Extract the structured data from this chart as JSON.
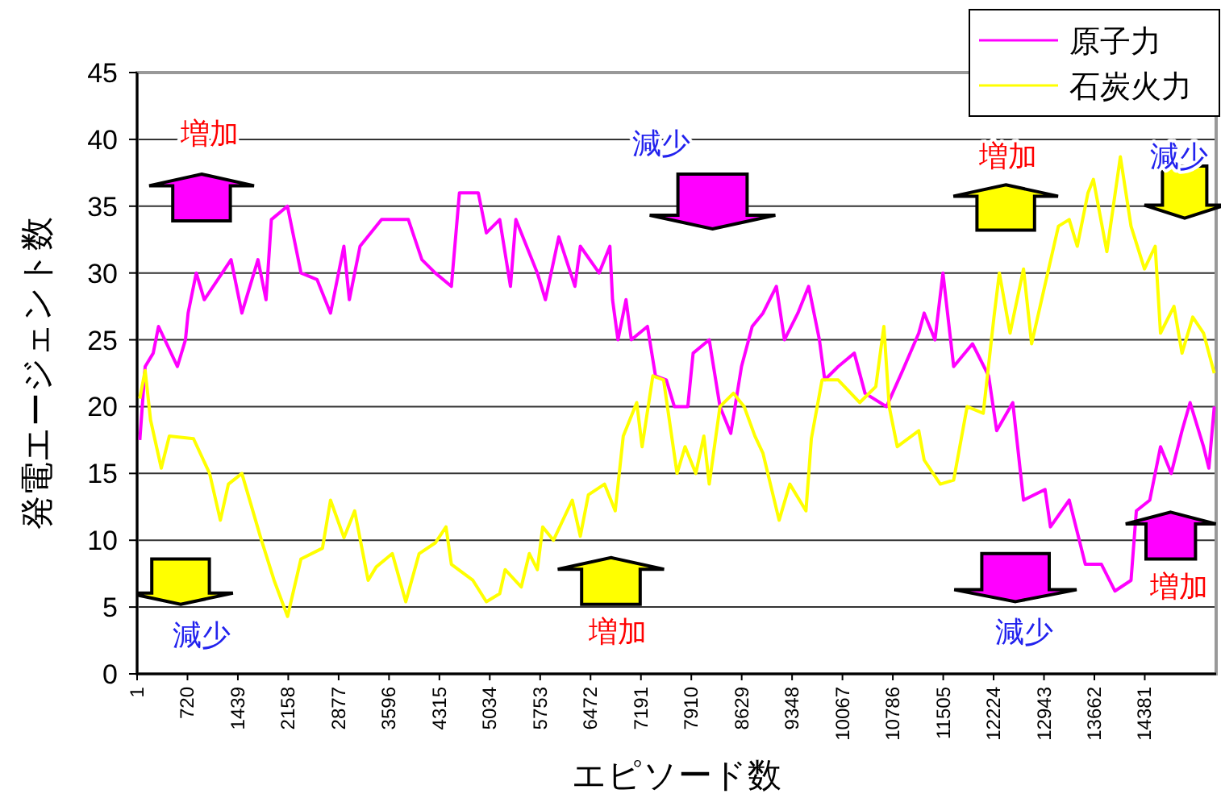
{
  "chart_data": {
    "type": "line",
    "xlabel": "エピソード数",
    "ylabel": "発電エージェント数",
    "xlim": [
      1,
      15400
    ],
    "xticks": [
      1,
      720,
      1439,
      2158,
      2877,
      3596,
      4315,
      5034,
      5753,
      6472,
      7191,
      7910,
      8629,
      9348,
      10067,
      10786,
      11505,
      12224,
      12943,
      13662,
      14381
    ],
    "ylim": [
      0,
      45
    ],
    "yticks": [
      0,
      5,
      10,
      15,
      20,
      25,
      30,
      35,
      40,
      45
    ],
    "grid": "y",
    "legend": "top right",
    "series": [
      {
        "name": "原子力",
        "color": "#ff00ff",
        "x": [
          40,
          116,
          231,
          307,
          576,
          691,
          729,
          845,
          960,
          1342,
          1496,
          1726,
          1841,
          1917,
          2147,
          2340,
          2570,
          2761,
          2952,
          3030,
          3182,
          3490,
          3872,
          4065,
          4256,
          4486,
          4601,
          4870,
          4985,
          5176,
          5329,
          5406,
          5713,
          5828,
          6019,
          6249,
          6326,
          6594,
          6748,
          6786,
          6863,
          6978,
          7054,
          7284,
          7399,
          7553,
          7668,
          7860,
          7936,
          8166,
          8319,
          8473,
          8626,
          8779,
          8933,
          9124,
          9239,
          9431,
          9584,
          9738,
          9814,
          10006,
          10236,
          10389,
          10696,
          10926,
          11156,
          11233,
          11387,
          11501,
          11654,
          11923,
          12153,
          12268,
          12498,
          12651,
          12958,
          13035,
          13303,
          13533,
          13763,
          13955,
          14185,
          14261,
          14453,
          14606,
          14759,
          14913,
          15028,
          15220,
          15296,
          15373
        ],
        "values": [
          17.5,
          23,
          24,
          26,
          23,
          25,
          27,
          30,
          28,
          31,
          27,
          31,
          28,
          34,
          35,
          30,
          29.5,
          27,
          32,
          28,
          32,
          34,
          34,
          31,
          30,
          29,
          36,
          36,
          33,
          34,
          29,
          34,
          30,
          28,
          32.7,
          29,
          32,
          30,
          32,
          28,
          25,
          28,
          25,
          26,
          22.3,
          22,
          20,
          20,
          24,
          25,
          20,
          18,
          23,
          26,
          27,
          29,
          25,
          27,
          29,
          25,
          22,
          23,
          24,
          21,
          20,
          22.7,
          25.5,
          27,
          25,
          30,
          23,
          24.7,
          22.3,
          18.2,
          20.3,
          13,
          13.8,
          11,
          13,
          8.2,
          8.2,
          6.2,
          7,
          12.2,
          13,
          17,
          15,
          18.2,
          20.3,
          17,
          15.4,
          20
        ]
      },
      {
        "name": "石炭火力",
        "color": "#ffff00",
        "x": [
          39,
          116,
          193,
          346,
          461,
          806,
          1036,
          1189,
          1304,
          1496,
          1764,
          1956,
          2148,
          2339,
          2646,
          2761,
          2953,
          3106,
          3298,
          3413,
          3643,
          3835,
          4026,
          4256,
          4409,
          4486,
          4793,
          4985,
          5176,
          5253,
          5483,
          5598,
          5713,
          5789,
          5943,
          6211,
          6326,
          6441,
          6671,
          6824,
          6939,
          7131,
          7208,
          7361,
          7514,
          7706,
          7821,
          7974,
          8089,
          8166,
          8319,
          8511,
          8664,
          8817,
          8933,
          9163,
          9316,
          9546,
          9623,
          9776,
          10006,
          10313,
          10543,
          10658,
          10734,
          10849,
          11156,
          11233,
          11463,
          11654,
          11846,
          12076,
          12229,
          12306,
          12459,
          12651,
          12766,
          12996,
          13149,
          13303,
          13418,
          13571,
          13648,
          13840,
          14033,
          14185,
          14377,
          14530,
          14606,
          14798,
          14913,
          15066,
          15220,
          15373
        ],
        "values": [
          20.6,
          22.7,
          19,
          15.4,
          17.8,
          17.6,
          15,
          11.5,
          14.2,
          15,
          10.2,
          7,
          4.3,
          8.6,
          9.4,
          13,
          10.2,
          12.2,
          7,
          8,
          9,
          5.4,
          9,
          9.8,
          11,
          8.2,
          7,
          5.4,
          6,
          7.8,
          6.5,
          9,
          7.8,
          11,
          10,
          13,
          10.3,
          13.4,
          14.2,
          12.2,
          17.8,
          20.3,
          17,
          22.3,
          22,
          15,
          17,
          15,
          17.8,
          14.2,
          20,
          21,
          20,
          17.8,
          16.5,
          11.5,
          14.2,
          12.2,
          17.6,
          22,
          22,
          20.3,
          21.5,
          26,
          20,
          17,
          18.2,
          16,
          14.2,
          14.5,
          20,
          19.5,
          26.7,
          30,
          25.5,
          30.3,
          24.7,
          30,
          33.5,
          34,
          32,
          36,
          37,
          31.6,
          38.7,
          33.5,
          30.3,
          32,
          25.5,
          27.5,
          24,
          26.7,
          25.5,
          22.5
        ]
      }
    ],
    "annotations": [
      "増加",
      "減少",
      "増加",
      "減少",
      "減少",
      "増加",
      "減少",
      "増加"
    ]
  }
}
